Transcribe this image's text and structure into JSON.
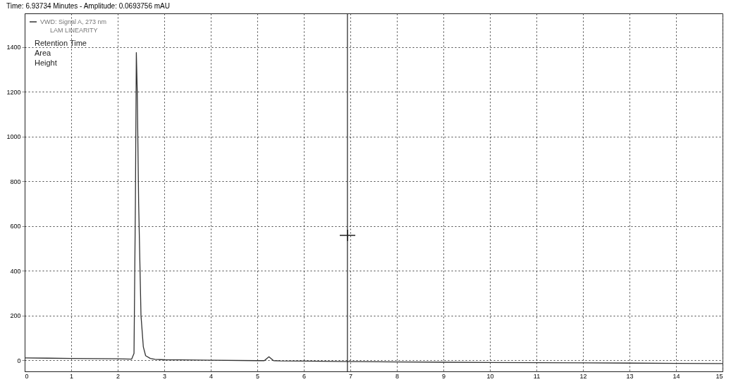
{
  "chart_data": {
    "type": "line",
    "title": "Time: 6.93734 Minutes - Amplitude: 0.0693756 mAU",
    "annotations": [
      "LAM LINEARITY",
      "Retention Time",
      "Area",
      "Height"
    ],
    "series": [
      {
        "name": "VWD: Signal A, 273 nm",
        "color": "#333333",
        "x": [
          0,
          0.5,
          1,
          1.5,
          2,
          2.3,
          2.35,
          2.38,
          2.4,
          2.42,
          2.45,
          2.5,
          2.55,
          2.6,
          2.7,
          2.8,
          3,
          4,
          5,
          5.15,
          5.25,
          5.35,
          5.5,
          6,
          7,
          8,
          9,
          10,
          11,
          12,
          13,
          14,
          15
        ],
        "values": [
          10,
          9,
          8,
          7,
          6,
          5,
          30,
          700,
          1375,
          1200,
          700,
          200,
          60,
          20,
          8,
          4,
          2,
          0,
          -2,
          -2,
          15,
          -2,
          -3,
          -4,
          -6,
          -8,
          -9,
          -10,
          -11,
          -12,
          -13,
          -14,
          -15
        ]
      }
    ],
    "xlim": [
      0,
      15
    ],
    "xticks": [
      0,
      1,
      2,
      3,
      4,
      5,
      6,
      7,
      8,
      9,
      10,
      11,
      12,
      13,
      14,
      15
    ],
    "ylim": [
      -50,
      1550
    ],
    "yticks": [
      0,
      200,
      400,
      600,
      800,
      1000,
      1200,
      1400
    ],
    "ref_lines": [
      {
        "axis": "x",
        "value": 6.93734,
        "color": "#222222"
      }
    ],
    "grid": true,
    "legend": "top left",
    "line_style": "solid",
    "marker": "none"
  }
}
